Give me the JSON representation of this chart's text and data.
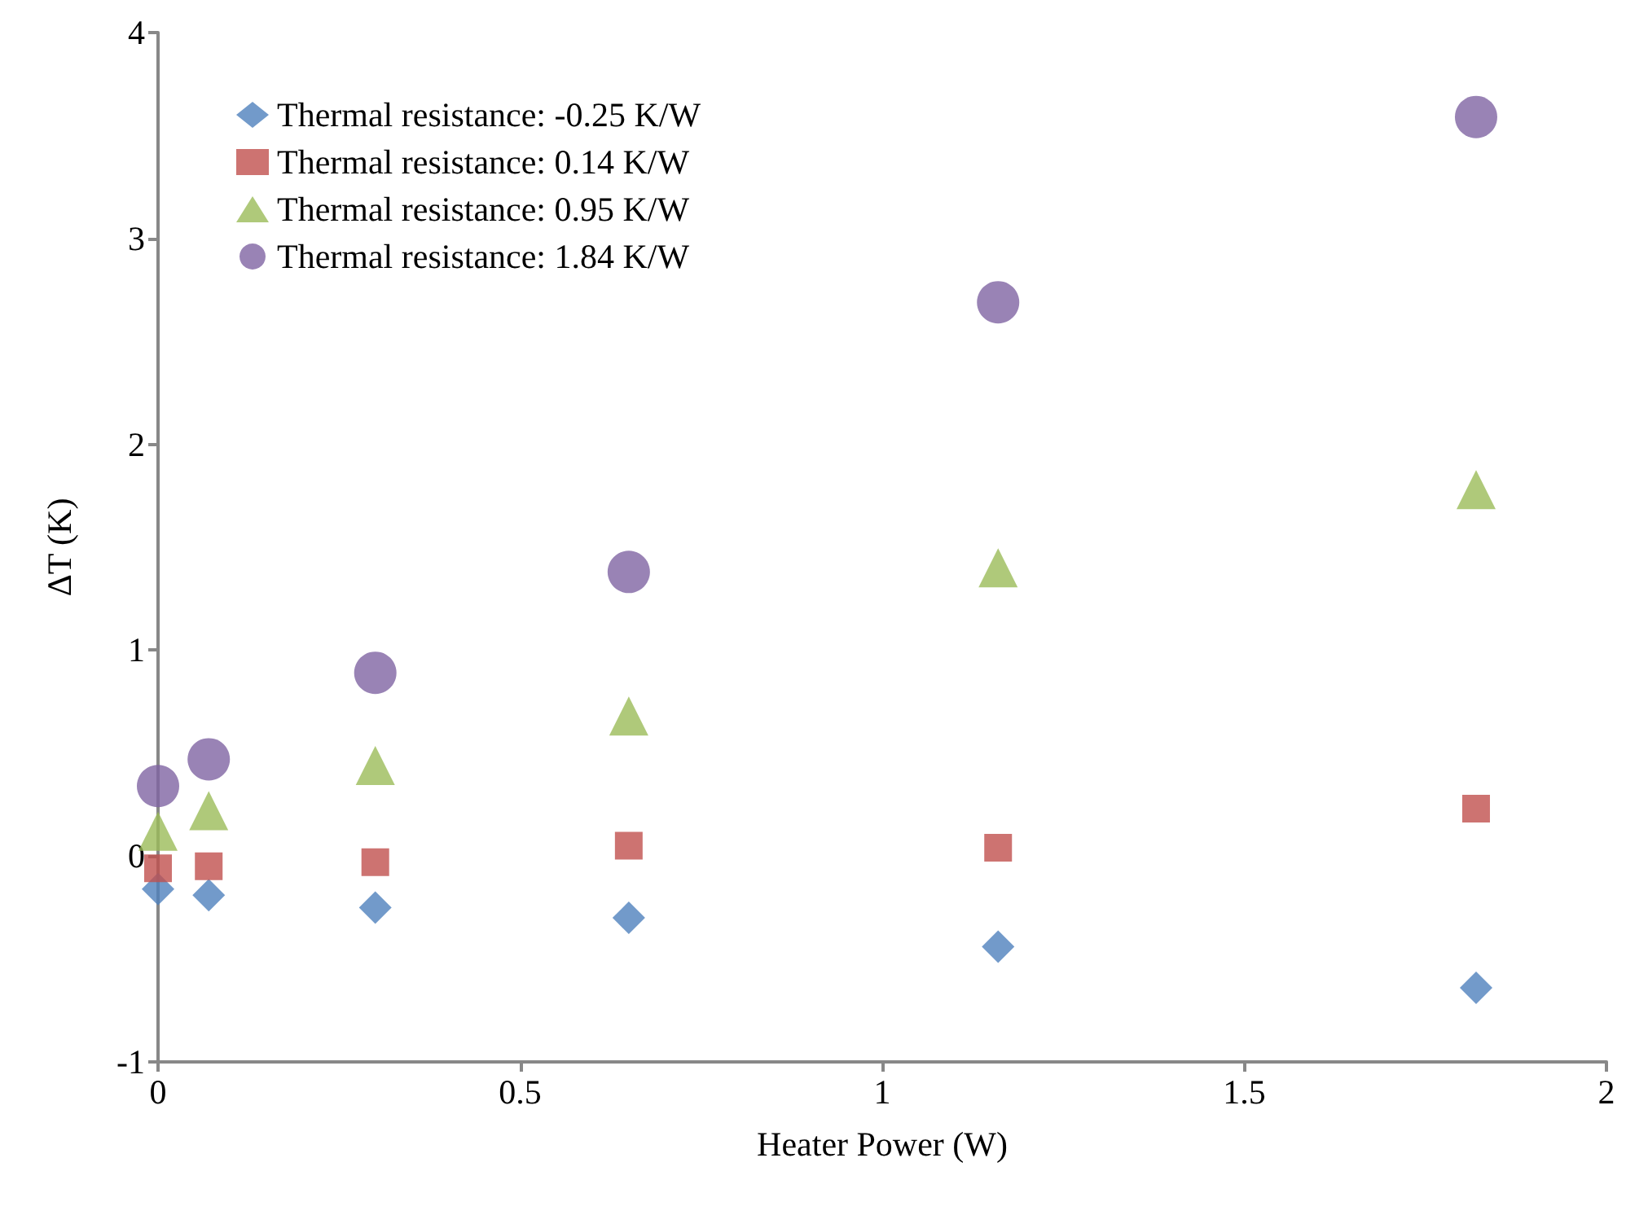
{
  "chart_data": {
    "type": "scatter",
    "xlabel": "Heater Power (W)",
    "ylabel": "ΔT (K)",
    "x": [
      0,
      0.07,
      0.3,
      0.65,
      1.16,
      1.82
    ],
    "series": [
      {
        "name": "Thermal resistance: -0.25 K/W",
        "color": "#4f81bd",
        "marker": "diamond",
        "values": [
          -0.16,
          -0.19,
          -0.25,
          -0.3,
          -0.44,
          -0.64
        ]
      },
      {
        "name": "Thermal resistance: 0.14 K/W",
        "color": "#c0504d",
        "marker": "square",
        "values": [
          -0.06,
          -0.05,
          -0.03,
          0.05,
          0.04,
          0.23
        ]
      },
      {
        "name": "Thermal resistance: 0.95 K/W",
        "color": "#9bbb59",
        "marker": "triangle",
        "values": [
          0.12,
          0.22,
          0.44,
          0.68,
          1.4,
          1.78
        ]
      },
      {
        "name": "Thermal resistance: 1.84 K/W",
        "color": "#8064a2",
        "marker": "circle",
        "values": [
          0.34,
          0.47,
          0.89,
          1.38,
          2.69,
          3.59
        ]
      }
    ],
    "xlim": [
      0,
      2
    ],
    "xticks": [
      0,
      0.5,
      1,
      1.5,
      2
    ],
    "ylim": [
      -1,
      4
    ],
    "yticks": [
      -1,
      0,
      1,
      2,
      3,
      4
    ],
    "grid": false,
    "legend": "top left"
  }
}
